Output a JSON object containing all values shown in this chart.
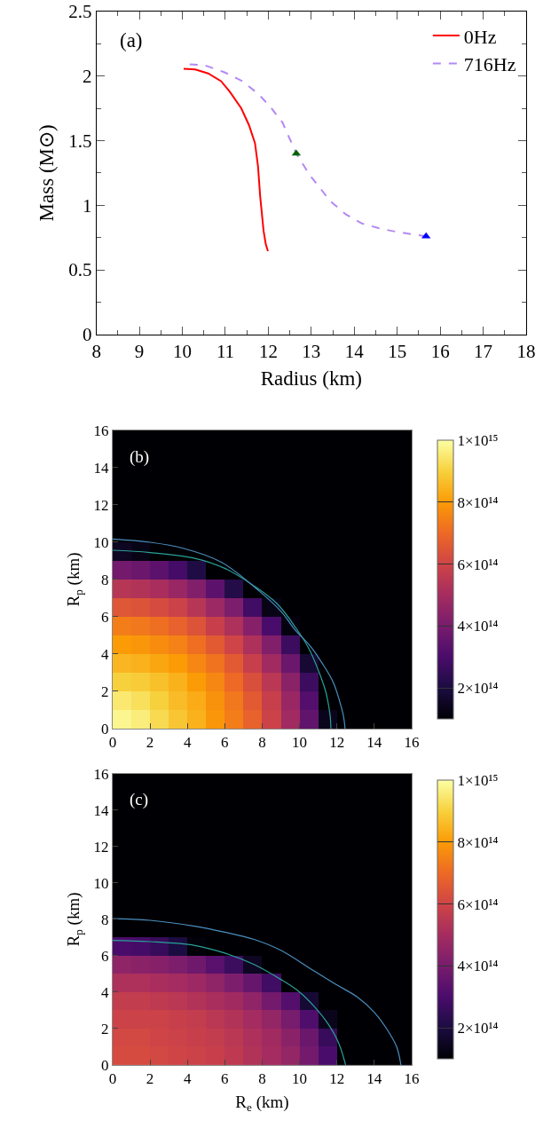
{
  "chart_data": [
    {
      "type": "line",
      "annotations": [
        "(a)"
      ],
      "xlabel": "Radius (km)",
      "ylabel": "Mass (M⊙)",
      "xlim": [
        8,
        18
      ],
      "xticks": [
        8,
        9,
        10,
        11,
        12,
        13,
        14,
        15,
        16,
        17,
        18
      ],
      "ylim": [
        0,
        2.5
      ],
      "yticks": [
        0,
        0.5,
        1,
        1.5,
        2,
        2.5
      ],
      "legend": "top right",
      "series": [
        {
          "name": "0Hz",
          "color": "#ff0000",
          "line_style": "solid",
          "x": [
            10.03,
            10.3,
            10.6,
            10.9,
            11.1,
            11.37,
            11.55,
            11.69,
            11.76,
            11.81,
            11.89,
            11.94,
            11.99
          ],
          "values": [
            2.056,
            2.05,
            2.02,
            1.96,
            1.88,
            1.75,
            1.62,
            1.48,
            1.3,
            1.07,
            0.8,
            0.7,
            0.645
          ]
        },
        {
          "name": "716Hz",
          "color": "#b388f5",
          "line_style": "dashed",
          "x": [
            10.17,
            10.5,
            10.97,
            11.4,
            11.77,
            12.05,
            12.33,
            12.65,
            12.97,
            13.45,
            13.8,
            14.17,
            14.6,
            14.98,
            15.35,
            15.67
          ],
          "values": [
            2.09,
            2.085,
            2.03,
            1.96,
            1.86,
            1.76,
            1.64,
            1.4,
            1.23,
            1.03,
            0.93,
            0.86,
            0.82,
            0.795,
            0.775,
            0.76
          ]
        },
        {
          "type": "scatter",
          "color": "#006400",
          "marker": "triangle",
          "x": [
            12.65
          ],
          "values": [
            1.4
          ]
        },
        {
          "type": "scatter",
          "color": "#0000ff",
          "marker": "triangle",
          "x": [
            15.67
          ],
          "values": [
            0.76
          ]
        }
      ]
    },
    {
      "type": "heatmap",
      "annotations": [
        "(b)"
      ],
      "ylabel": "R$_{p}$ (km)",
      "xlim": [
        0,
        16
      ],
      "xticks": [
        0,
        2,
        4,
        6,
        8,
        10,
        12,
        14,
        16
      ],
      "ylim": [
        0,
        16
      ],
      "yticks": [
        0,
        2,
        4,
        6,
        8,
        10,
        12,
        14,
        16
      ],
      "clim": [
        100000000000000.0,
        1000000000000000.0
      ],
      "cticks": [
        {
          "value": 200000000000000.0,
          "label": "2×10¹⁴"
        },
        {
          "value": 400000000000000.0,
          "label": "4×10¹⁴"
        },
        {
          "value": 600000000000000.0,
          "label": "6×10¹⁴"
        },
        {
          "value": 800000000000000.0,
          "label": "8×10¹⁴"
        },
        {
          "value": 1000000000000000.0,
          "label": "1×10¹⁵"
        }
      ],
      "cells": [
        [
          100000000000000.0,
          100000000000000.0,
          100000000000000.0,
          100000000000000.0,
          100000000000000.0,
          100000000000000.0,
          100000000000000.0,
          100000000000000.0,
          100000000000000.0,
          100000000000000.0,
          100000000000000.0,
          100000000000000.0,
          100000000000000.0,
          100000000000000.0,
          100000000000000.0,
          100000000000000.0
        ],
        [
          100000000000000.0,
          100000000000000.0,
          100000000000000.0,
          100000000000000.0,
          100000000000000.0,
          100000000000000.0,
          100000000000000.0,
          100000000000000.0,
          100000000000000.0,
          100000000000000.0,
          100000000000000.0,
          100000000000000.0,
          100000000000000.0,
          100000000000000.0,
          100000000000000.0,
          100000000000000.0
        ],
        [
          100000000000000.0,
          100000000000000.0,
          100000000000000.0,
          100000000000000.0,
          100000000000000.0,
          100000000000000.0,
          100000000000000.0,
          100000000000000.0,
          100000000000000.0,
          100000000000000.0,
          100000000000000.0,
          100000000000000.0,
          100000000000000.0,
          100000000000000.0,
          100000000000000.0,
          100000000000000.0
        ],
        [
          100000000000000.0,
          100000000000000.0,
          100000000000000.0,
          100000000000000.0,
          100000000000000.0,
          100000000000000.0,
          100000000000000.0,
          100000000000000.0,
          100000000000000.0,
          100000000000000.0,
          100000000000000.0,
          100000000000000.0,
          100000000000000.0,
          100000000000000.0,
          100000000000000.0,
          100000000000000.0
        ],
        [
          100000000000000.0,
          100000000000000.0,
          100000000000000.0,
          100000000000000.0,
          100000000000000.0,
          100000000000000.0,
          100000000000000.0,
          100000000000000.0,
          100000000000000.0,
          100000000000000.0,
          100000000000000.0,
          100000000000000.0,
          100000000000000.0,
          100000000000000.0,
          100000000000000.0,
          100000000000000.0
        ],
        [
          100000000000000.0,
          100000000000000.0,
          100000000000000.0,
          100000000000000.0,
          100000000000000.0,
          100000000000000.0,
          100000000000000.0,
          100000000000000.0,
          100000000000000.0,
          100000000000000.0,
          100000000000000.0,
          100000000000000.0,
          100000000000000.0,
          100000000000000.0,
          100000000000000.0,
          100000000000000.0
        ],
        [
          150000000000000.0,
          130000000000000.0,
          100000000000000.0,
          100000000000000.0,
          100000000000000.0,
          100000000000000.0,
          100000000000000.0,
          100000000000000.0,
          100000000000000.0,
          100000000000000.0,
          100000000000000.0,
          100000000000000.0,
          100000000000000.0,
          100000000000000.0,
          100000000000000.0,
          100000000000000.0
        ],
        [
          390000000000000.0,
          370000000000000.0,
          340000000000000.0,
          290000000000000.0,
          210000000000000.0,
          100000000000000.0,
          100000000000000.0,
          100000000000000.0,
          100000000000000.0,
          100000000000000.0,
          100000000000000.0,
          100000000000000.0,
          100000000000000.0,
          100000000000000.0,
          100000000000000.0,
          100000000000000.0
        ],
        [
          540000000000000.0,
          530000000000000.0,
          510000000000000.0,
          470000000000000.0,
          420000000000000.0,
          340000000000000.0,
          220000000000000.0,
          100000000000000.0,
          100000000000000.0,
          100000000000000.0,
          100000000000000.0,
          100000000000000.0,
          100000000000000.0,
          100000000000000.0,
          100000000000000.0,
          100000000000000.0
        ],
        [
          650000000000000.0,
          640000000000000.0,
          620000000000000.0,
          590000000000000.0,
          540000000000000.0,
          480000000000000.0,
          410000000000000.0,
          280000000000000.0,
          130000000000000.0,
          100000000000000.0,
          100000000000000.0,
          100000000000000.0,
          100000000000000.0,
          100000000000000.0,
          100000000000000.0,
          100000000000000.0
        ],
        [
          740000000000000.0,
          730000000000000.0,
          710000000000000.0,
          680000000000000.0,
          640000000000000.0,
          580000000000000.0,
          520000000000000.0,
          430000000000000.0,
          300000000000000.0,
          120000000000000.0,
          100000000000000.0,
          100000000000000.0,
          100000000000000.0,
          100000000000000.0,
          100000000000000.0,
          100000000000000.0
        ],
        [
          800000000000000.0,
          790000000000000.0,
          770000000000000.0,
          750000000000000.0,
          710000000000000.0,
          660000000000000.0,
          600000000000000.0,
          520000000000000.0,
          420000000000000.0,
          270000000000000.0,
          100000000000000.0,
          100000000000000.0,
          100000000000000.0,
          100000000000000.0,
          100000000000000.0,
          100000000000000.0
        ],
        [
          850000000000000.0,
          840000000000000.0,
          820000000000000.0,
          800000000000000.0,
          760000000000000.0,
          720000000000000.0,
          660000000000000.0,
          580000000000000.0,
          490000000000000.0,
          370000000000000.0,
          180000000000000.0,
          100000000000000.0,
          100000000000000.0,
          100000000000000.0,
          100000000000000.0,
          100000000000000.0
        ],
        [
          900000000000000.0,
          890000000000000.0,
          870000000000000.0,
          840000000000000.0,
          800000000000000.0,
          760000000000000.0,
          700000000000000.0,
          630000000000000.0,
          550000000000000.0,
          440000000000000.0,
          270000000000000.0,
          100000000000000.0,
          100000000000000.0,
          100000000000000.0,
          100000000000000.0,
          100000000000000.0
        ],
        [
          950000000000000.0,
          930000000000000.0,
          900000000000000.0,
          860000000000000.0,
          830000000000000.0,
          780000000000000.0,
          730000000000000.0,
          660000000000000.0,
          580000000000000.0,
          470000000000000.0,
          320000000000000.0,
          100000000000000.0,
          100000000000000.0,
          100000000000000.0,
          100000000000000.0,
          100000000000000.0
        ],
        [
          980000000000000.0,
          960000000000000.0,
          920000000000000.0,
          880000000000000.0,
          840000000000000.0,
          790000000000000.0,
          740000000000000.0,
          680000000000000.0,
          590000000000000.0,
          490000000000000.0,
          350000000000000.0,
          140000000000000.0,
          100000000000000.0,
          100000000000000.0,
          100000000000000.0,
          100000000000000.0
        ]
      ],
      "series": [
        {
          "type": "line",
          "color": "#2aa198",
          "x": [
            0,
            2,
            4.4,
            6,
            7.56,
            8.8,
            9.78,
            10.5,
            11.04,
            11.4,
            11.52,
            11.65,
            11.68
          ],
          "values": [
            9.57,
            9.45,
            9.14,
            8.6,
            7.66,
            6.7,
            5.44,
            4.3,
            3.05,
            2.0,
            1.46,
            0.6,
            0
          ]
        },
        {
          "type": "line",
          "color": "#4a8fc0",
          "x": [
            0,
            2,
            3.77,
            5.82,
            7.88,
            9.0,
            9.78,
            10.6,
            11.2,
            11.8,
            12.15,
            12.35,
            12.44
          ],
          "values": [
            10.17,
            10.0,
            9.68,
            8.93,
            7.35,
            6.3,
            5.28,
            4.4,
            3.53,
            2.5,
            1.46,
            0.7,
            0
          ]
        }
      ]
    },
    {
      "type": "heatmap",
      "annotations": [
        "(c)"
      ],
      "xlabel": "R$_{e}$ (km)",
      "ylabel": "R$_{p}$ (km)",
      "xlim": [
        0,
        16
      ],
      "xticks": [
        0,
        2,
        4,
        6,
        8,
        10,
        12,
        14,
        16
      ],
      "ylim": [
        0,
        16
      ],
      "yticks": [
        0,
        2,
        4,
        6,
        8,
        10,
        12,
        14,
        16
      ],
      "clim": [
        100000000000000.0,
        1000000000000000.0
      ],
      "cticks": [
        {
          "value": 200000000000000.0,
          "label": "2×10¹⁴"
        },
        {
          "value": 400000000000000.0,
          "label": "4×10¹⁴"
        },
        {
          "value": 600000000000000.0,
          "label": "6×10¹⁴"
        },
        {
          "value": 800000000000000.0,
          "label": "8×10¹⁴"
        },
        {
          "value": 1000000000000000.0,
          "label": "1×10¹⁵"
        }
      ],
      "cells": [
        [
          100000000000000.0,
          100000000000000.0,
          100000000000000.0,
          100000000000000.0,
          100000000000000.0,
          100000000000000.0,
          100000000000000.0,
          100000000000000.0,
          100000000000000.0,
          100000000000000.0,
          100000000000000.0,
          100000000000000.0,
          100000000000000.0,
          100000000000000.0,
          100000000000000.0,
          100000000000000.0
        ],
        [
          100000000000000.0,
          100000000000000.0,
          100000000000000.0,
          100000000000000.0,
          100000000000000.0,
          100000000000000.0,
          100000000000000.0,
          100000000000000.0,
          100000000000000.0,
          100000000000000.0,
          100000000000000.0,
          100000000000000.0,
          100000000000000.0,
          100000000000000.0,
          100000000000000.0,
          100000000000000.0
        ],
        [
          100000000000000.0,
          100000000000000.0,
          100000000000000.0,
          100000000000000.0,
          100000000000000.0,
          100000000000000.0,
          100000000000000.0,
          100000000000000.0,
          100000000000000.0,
          100000000000000.0,
          100000000000000.0,
          100000000000000.0,
          100000000000000.0,
          100000000000000.0,
          100000000000000.0,
          100000000000000.0
        ],
        [
          100000000000000.0,
          100000000000000.0,
          100000000000000.0,
          100000000000000.0,
          100000000000000.0,
          100000000000000.0,
          100000000000000.0,
          100000000000000.0,
          100000000000000.0,
          100000000000000.0,
          100000000000000.0,
          100000000000000.0,
          100000000000000.0,
          100000000000000.0,
          100000000000000.0,
          100000000000000.0
        ],
        [
          100000000000000.0,
          100000000000000.0,
          100000000000000.0,
          100000000000000.0,
          100000000000000.0,
          100000000000000.0,
          100000000000000.0,
          100000000000000.0,
          100000000000000.0,
          100000000000000.0,
          100000000000000.0,
          100000000000000.0,
          100000000000000.0,
          100000000000000.0,
          100000000000000.0,
          100000000000000.0
        ],
        [
          100000000000000.0,
          100000000000000.0,
          100000000000000.0,
          100000000000000.0,
          100000000000000.0,
          100000000000000.0,
          100000000000000.0,
          100000000000000.0,
          100000000000000.0,
          100000000000000.0,
          100000000000000.0,
          100000000000000.0,
          100000000000000.0,
          100000000000000.0,
          100000000000000.0,
          100000000000000.0
        ],
        [
          100000000000000.0,
          100000000000000.0,
          100000000000000.0,
          100000000000000.0,
          100000000000000.0,
          100000000000000.0,
          100000000000000.0,
          100000000000000.0,
          100000000000000.0,
          100000000000000.0,
          100000000000000.0,
          100000000000000.0,
          100000000000000.0,
          100000000000000.0,
          100000000000000.0,
          100000000000000.0
        ],
        [
          100000000000000.0,
          100000000000000.0,
          100000000000000.0,
          100000000000000.0,
          100000000000000.0,
          100000000000000.0,
          100000000000000.0,
          100000000000000.0,
          100000000000000.0,
          100000000000000.0,
          100000000000000.0,
          100000000000000.0,
          100000000000000.0,
          100000000000000.0,
          100000000000000.0,
          100000000000000.0
        ],
        [
          100000000000000.0,
          100000000000000.0,
          100000000000000.0,
          100000000000000.0,
          100000000000000.0,
          100000000000000.0,
          100000000000000.0,
          100000000000000.0,
          100000000000000.0,
          100000000000000.0,
          100000000000000.0,
          100000000000000.0,
          100000000000000.0,
          100000000000000.0,
          100000000000000.0,
          100000000000000.0
        ],
        [
          300000000000000.0,
          290000000000000.0,
          260000000000000.0,
          200000000000000.0,
          110000000000000.0,
          100000000000000.0,
          100000000000000.0,
          100000000000000.0,
          100000000000000.0,
          100000000000000.0,
          100000000000000.0,
          100000000000000.0,
          100000000000000.0,
          100000000000000.0,
          100000000000000.0,
          100000000000000.0
        ],
        [
          450000000000000.0,
          440000000000000.0,
          430000000000000.0,
          410000000000000.0,
          380000000000000.0,
          330000000000000.0,
          270000000000000.0,
          150000000000000.0,
          100000000000000.0,
          100000000000000.0,
          100000000000000.0,
          100000000000000.0,
          100000000000000.0,
          100000000000000.0,
          100000000000000.0,
          100000000000000.0
        ],
        [
          520000000000000.0,
          520000000000000.0,
          510000000000000.0,
          500000000000000.0,
          480000000000000.0,
          450000000000000.0,
          410000000000000.0,
          360000000000000.0,
          280000000000000.0,
          100000000000000.0,
          100000000000000.0,
          100000000000000.0,
          100000000000000.0,
          100000000000000.0,
          100000000000000.0,
          100000000000000.0
        ],
        [
          570000000000000.0,
          570000000000000.0,
          560000000000000.0,
          550000000000000.0,
          530000000000000.0,
          510000000000000.0,
          490000000000000.0,
          450000000000000.0,
          390000000000000.0,
          320000000000000.0,
          180000000000000.0,
          100000000000000.0,
          100000000000000.0,
          100000000000000.0,
          100000000000000.0,
          100000000000000.0
        ],
        [
          590000000000000.0,
          590000000000000.0,
          590000000000000.0,
          580000000000000.0,
          570000000000000.0,
          550000000000000.0,
          530000000000000.0,
          500000000000000.0,
          460000000000000.0,
          400000000000000.0,
          310000000000000.0,
          140000000000000.0,
          100000000000000.0,
          100000000000000.0,
          100000000000000.0,
          100000000000000.0
        ],
        [
          610000000000000.0,
          610000000000000.0,
          600000000000000.0,
          590000000000000.0,
          580000000000000.0,
          570000000000000.0,
          550000000000000.0,
          520000000000000.0,
          490000000000000.0,
          440000000000000.0,
          370000000000000.0,
          260000000000000.0,
          100000000000000.0,
          100000000000000.0,
          100000000000000.0,
          100000000000000.0
        ],
        [
          620000000000000.0,
          620000000000000.0,
          610000000000000.0,
          600000000000000.0,
          590000000000000.0,
          580000000000000.0,
          560000000000000.0,
          530000000000000.0,
          500000000000000.0,
          460000000000000.0,
          390000000000000.0,
          300000000000000.0,
          100000000000000.0,
          100000000000000.0,
          100000000000000.0,
          100000000000000.0
        ]
      ],
      "series": [
        {
          "type": "line",
          "color": "#2aa198",
          "x": [
            0,
            2,
            4.4,
            6,
            7.57,
            9,
            9.94,
            10.8,
            11.52,
            12.1,
            12.47
          ],
          "values": [
            6.85,
            6.78,
            6.57,
            6.15,
            5.52,
            4.7,
            4.06,
            3.2,
            2.27,
            1.2,
            0
          ]
        },
        {
          "type": "line",
          "color": "#4a8fc0",
          "x": [
            0,
            2,
            4.4,
            6,
            7.57,
            9,
            10.74,
            12,
            13.1,
            14,
            14.69,
            15.2,
            15.43
          ],
          "values": [
            8.04,
            7.95,
            7.63,
            7.3,
            6.9,
            6.3,
            5.19,
            4.4,
            3.73,
            2.9,
            1.95,
            1.0,
            0
          ]
        }
      ]
    }
  ]
}
